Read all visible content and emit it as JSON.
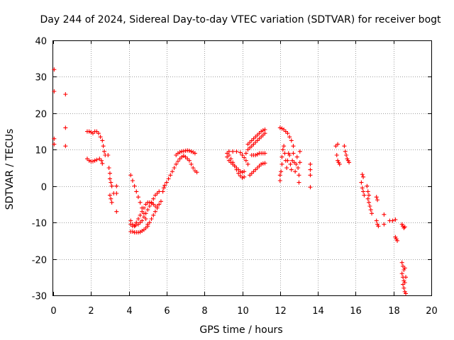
{
  "chart_data": {
    "type": "scatter",
    "title": "Day 244 of 2024, Sidereal Day-to-day VTEC variation (SDTVAR) for receiver bogt",
    "xlabel": "GPS time / hours",
    "ylabel": "SDTVAR / TECUs",
    "xlim": [
      0,
      20
    ],
    "ylim": [
      -30,
      40
    ],
    "xticks": [
      0,
      2,
      4,
      6,
      8,
      10,
      12,
      14,
      16,
      18,
      20
    ],
    "yticks": [
      -30,
      -20,
      -10,
      0,
      10,
      20,
      30,
      40
    ],
    "grid": true,
    "marker": "+",
    "color": "#ff0000",
    "series": [
      {
        "name": "SDTVAR",
        "points": [
          [
            0.05,
            32
          ],
          [
            0.05,
            26
          ],
          [
            0.05,
            13
          ],
          [
            0.05,
            11.5
          ],
          [
            0.65,
            25.2
          ],
          [
            0.65,
            16
          ],
          [
            0.65,
            11
          ],
          [
            1.8,
            15
          ],
          [
            1.9,
            15
          ],
          [
            2.0,
            14.8
          ],
          [
            2.1,
            14.5
          ],
          [
            2.2,
            15
          ],
          [
            2.3,
            15
          ],
          [
            2.4,
            14.5
          ],
          [
            2.5,
            13.5
          ],
          [
            2.6,
            12.5
          ],
          [
            2.65,
            11
          ],
          [
            2.7,
            9.5
          ],
          [
            2.75,
            8.5
          ],
          [
            1.8,
            7.5
          ],
          [
            1.9,
            7
          ],
          [
            2.0,
            6.8
          ],
          [
            2.1,
            6.8
          ],
          [
            2.2,
            7
          ],
          [
            2.3,
            7.2
          ],
          [
            2.45,
            7.5
          ],
          [
            2.55,
            7
          ],
          [
            2.6,
            6.2
          ],
          [
            2.9,
            8.5
          ],
          [
            2.95,
            5
          ],
          [
            3.0,
            3.5
          ],
          [
            3.0,
            2
          ],
          [
            3.05,
            1
          ],
          [
            3.1,
            0
          ],
          [
            3.0,
            -2.5
          ],
          [
            3.05,
            -3.5
          ],
          [
            3.1,
            -4.5
          ],
          [
            3.2,
            -2
          ],
          [
            3.35,
            0
          ],
          [
            3.35,
            -2
          ],
          [
            3.35,
            -7
          ],
          [
            4.1,
            3
          ],
          [
            4.2,
            1.5
          ],
          [
            4.3,
            0
          ],
          [
            4.4,
            -1.5
          ],
          [
            4.5,
            -3
          ],
          [
            4.6,
            -4.5
          ],
          [
            4.7,
            -6
          ],
          [
            4.8,
            -7.5
          ],
          [
            4.9,
            -9
          ],
          [
            5.0,
            -10.5
          ],
          [
            4.1,
            -9.5
          ],
          [
            4.2,
            -10.5
          ],
          [
            4.3,
            -11
          ],
          [
            4.4,
            -10
          ],
          [
            4.5,
            -9
          ],
          [
            4.6,
            -8
          ],
          [
            4.7,
            -7
          ],
          [
            4.8,
            -6
          ],
          [
            4.9,
            -5
          ],
          [
            5.0,
            -4.5
          ],
          [
            5.1,
            -4.5
          ],
          [
            5.2,
            -4.7
          ],
          [
            5.3,
            -5
          ],
          [
            5.4,
            -5.5
          ],
          [
            5.5,
            -5.5
          ],
          [
            4.1,
            -12.5
          ],
          [
            4.2,
            -12.5
          ],
          [
            4.3,
            -12.7
          ],
          [
            4.4,
            -12.7
          ],
          [
            4.5,
            -12.7
          ],
          [
            4.6,
            -12.6
          ],
          [
            4.7,
            -12.3
          ],
          [
            4.8,
            -12
          ],
          [
            4.9,
            -11.5
          ],
          [
            5.0,
            -11
          ],
          [
            5.1,
            -10
          ],
          [
            5.2,
            -9
          ],
          [
            5.3,
            -8
          ],
          [
            5.4,
            -7
          ],
          [
            5.5,
            -6
          ],
          [
            5.6,
            -5
          ],
          [
            5.7,
            -4.2
          ],
          [
            4.1,
            -10.5
          ],
          [
            4.2,
            -11
          ],
          [
            4.35,
            -10.8
          ],
          [
            4.5,
            -10.5
          ],
          [
            4.6,
            -10
          ],
          [
            4.7,
            -9.5
          ],
          [
            4.8,
            -8.5
          ],
          [
            4.9,
            -7.5
          ],
          [
            5.0,
            -6.5
          ],
          [
            5.1,
            -5.5
          ],
          [
            5.2,
            -4.5
          ],
          [
            5.3,
            -3.5
          ],
          [
            5.4,
            -2.5
          ],
          [
            5.5,
            -2
          ],
          [
            5.6,
            -1.5
          ],
          [
            5.8,
            -1.5
          ],
          [
            5.85,
            -0.5
          ],
          [
            5.9,
            0.2
          ],
          [
            6.0,
            1
          ],
          [
            6.1,
            2
          ],
          [
            6.2,
            3
          ],
          [
            6.3,
            4
          ],
          [
            6.4,
            5
          ],
          [
            6.5,
            6
          ],
          [
            6.6,
            6.8
          ],
          [
            6.7,
            7.5
          ],
          [
            6.8,
            8
          ],
          [
            6.9,
            8.3
          ],
          [
            7.0,
            8
          ],
          [
            7.1,
            7.5
          ],
          [
            7.2,
            7
          ],
          [
            7.3,
            6
          ],
          [
            7.4,
            5
          ],
          [
            7.5,
            4.2
          ],
          [
            7.6,
            3.8
          ],
          [
            6.5,
            8.5
          ],
          [
            6.6,
            9
          ],
          [
            6.7,
            9.3
          ],
          [
            6.8,
            9.5
          ],
          [
            6.9,
            9.6
          ],
          [
            7.0,
            9.7
          ],
          [
            7.1,
            9.8
          ],
          [
            7.2,
            9.7
          ],
          [
            7.3,
            9.5
          ],
          [
            7.4,
            9.3
          ],
          [
            7.5,
            9
          ],
          [
            9.2,
            9
          ],
          [
            9.3,
            8.5
          ],
          [
            9.4,
            7.5
          ],
          [
            9.5,
            6.5
          ],
          [
            9.6,
            5.5
          ],
          [
            9.7,
            4.5
          ],
          [
            9.8,
            3.5
          ],
          [
            9.9,
            2.8
          ],
          [
            10.0,
            2.3
          ],
          [
            10.1,
            2.5
          ],
          [
            9.2,
            8
          ],
          [
            9.3,
            7
          ],
          [
            9.4,
            6.5
          ],
          [
            9.5,
            6
          ],
          [
            9.6,
            5.5
          ],
          [
            9.7,
            5
          ],
          [
            9.8,
            4.5
          ],
          [
            9.9,
            4
          ],
          [
            10.0,
            3.8
          ],
          [
            10.1,
            4
          ],
          [
            9.3,
            9.5
          ],
          [
            9.5,
            9.5
          ],
          [
            9.7,
            9.5
          ],
          [
            9.9,
            9.2
          ],
          [
            10.0,
            8.5
          ],
          [
            10.1,
            7.8
          ],
          [
            10.2,
            7
          ],
          [
            10.3,
            6
          ],
          [
            10.2,
            9
          ],
          [
            10.3,
            10
          ],
          [
            10.4,
            10.5
          ],
          [
            10.5,
            11
          ],
          [
            10.6,
            11.5
          ],
          [
            10.7,
            12
          ],
          [
            10.8,
            12.5
          ],
          [
            10.9,
            13
          ],
          [
            11.0,
            13.5
          ],
          [
            11.1,
            14
          ],
          [
            11.2,
            14.5
          ],
          [
            10.3,
            11.5
          ],
          [
            10.4,
            12
          ],
          [
            10.5,
            12.5
          ],
          [
            10.6,
            13
          ],
          [
            10.7,
            13.5
          ],
          [
            10.8,
            14
          ],
          [
            10.9,
            14.5
          ],
          [
            11.0,
            15
          ],
          [
            11.1,
            15.3
          ],
          [
            11.2,
            15.5
          ],
          [
            10.4,
            3
          ],
          [
            10.5,
            3.5
          ],
          [
            10.6,
            4
          ],
          [
            10.7,
            4.5
          ],
          [
            10.8,
            5
          ],
          [
            10.9,
            5.5
          ],
          [
            11.0,
            6
          ],
          [
            11.1,
            6.2
          ],
          [
            11.2,
            6.3
          ],
          [
            10.5,
            8.5
          ],
          [
            10.6,
            8.5
          ],
          [
            10.7,
            8.5
          ],
          [
            10.8,
            8.7
          ],
          [
            10.9,
            9
          ],
          [
            11.0,
            9
          ],
          [
            11.1,
            9
          ],
          [
            11.2,
            9
          ],
          [
            12.0,
            16
          ],
          [
            12.1,
            15.8
          ],
          [
            12.2,
            15.5
          ],
          [
            12.3,
            15
          ],
          [
            12.4,
            14.5
          ],
          [
            12.5,
            13.5
          ],
          [
            12.6,
            12.5
          ],
          [
            12.7,
            11
          ],
          [
            12.0,
            3
          ],
          [
            12.0,
            1.5
          ],
          [
            12.05,
            4
          ],
          [
            12.1,
            6
          ],
          [
            12.1,
            8
          ],
          [
            12.15,
            10
          ],
          [
            12.2,
            11
          ],
          [
            12.25,
            9
          ],
          [
            12.3,
            7
          ],
          [
            12.35,
            5
          ],
          [
            12.4,
            7
          ],
          [
            12.45,
            9
          ],
          [
            12.5,
            8.5
          ],
          [
            12.55,
            6
          ],
          [
            12.6,
            4.5
          ],
          [
            12.65,
            7
          ],
          [
            12.7,
            9
          ],
          [
            12.75,
            6.5
          ],
          [
            12.8,
            4
          ],
          [
            12.85,
            6
          ],
          [
            12.9,
            8
          ],
          [
            12.95,
            5
          ],
          [
            13.0,
            3
          ],
          [
            13.0,
            1
          ],
          [
            13.05,
            9.5
          ],
          [
            13.05,
            6.5
          ],
          [
            13.6,
            6
          ],
          [
            13.6,
            4.5
          ],
          [
            13.6,
            3
          ],
          [
            13.6,
            -0.3
          ],
          [
            14.95,
            11
          ],
          [
            15.05,
            11.5
          ],
          [
            15.0,
            8.5
          ],
          [
            15.05,
            7
          ],
          [
            15.1,
            6.5
          ],
          [
            15.15,
            6
          ],
          [
            15.4,
            11
          ],
          [
            15.45,
            9.5
          ],
          [
            15.5,
            8.5
          ],
          [
            15.55,
            7.5
          ],
          [
            15.6,
            7
          ],
          [
            15.65,
            6.5
          ],
          [
            16.35,
            3.2
          ],
          [
            16.4,
            2.5
          ],
          [
            16.3,
            1
          ],
          [
            16.35,
            -0.5
          ],
          [
            16.4,
            -1.5
          ],
          [
            16.45,
            -2.5
          ],
          [
            16.6,
            0
          ],
          [
            16.65,
            -1.5
          ],
          [
            16.7,
            -2.5
          ],
          [
            16.65,
            -3.5
          ],
          [
            16.7,
            -4.5
          ],
          [
            16.75,
            -5.5
          ],
          [
            16.8,
            -6.5
          ],
          [
            16.85,
            -7.5
          ],
          [
            17.1,
            -3
          ],
          [
            17.15,
            -3.8
          ],
          [
            17.1,
            -9.5
          ],
          [
            17.15,
            -10.5
          ],
          [
            17.2,
            -11
          ],
          [
            17.5,
            -10.5
          ],
          [
            17.5,
            -7.8
          ],
          [
            17.8,
            -9.5
          ],
          [
            17.95,
            -9.5
          ],
          [
            18.1,
            -9.2
          ],
          [
            18.1,
            -14
          ],
          [
            18.15,
            -14.5
          ],
          [
            18.2,
            -15
          ],
          [
            18.45,
            -10.5
          ],
          [
            18.5,
            -11
          ],
          [
            18.55,
            -11.5
          ],
          [
            18.6,
            -11.2
          ],
          [
            18.45,
            -21
          ],
          [
            18.5,
            -22
          ],
          [
            18.55,
            -23
          ],
          [
            18.45,
            -24
          ],
          [
            18.5,
            -25
          ],
          [
            18.55,
            -26
          ],
          [
            18.5,
            -27
          ],
          [
            18.55,
            -28
          ],
          [
            18.6,
            -29
          ],
          [
            18.65,
            -29.5
          ],
          [
            18.6,
            -26.5
          ],
          [
            18.65,
            -25
          ],
          [
            18.6,
            -22.5
          ]
        ]
      }
    ]
  }
}
